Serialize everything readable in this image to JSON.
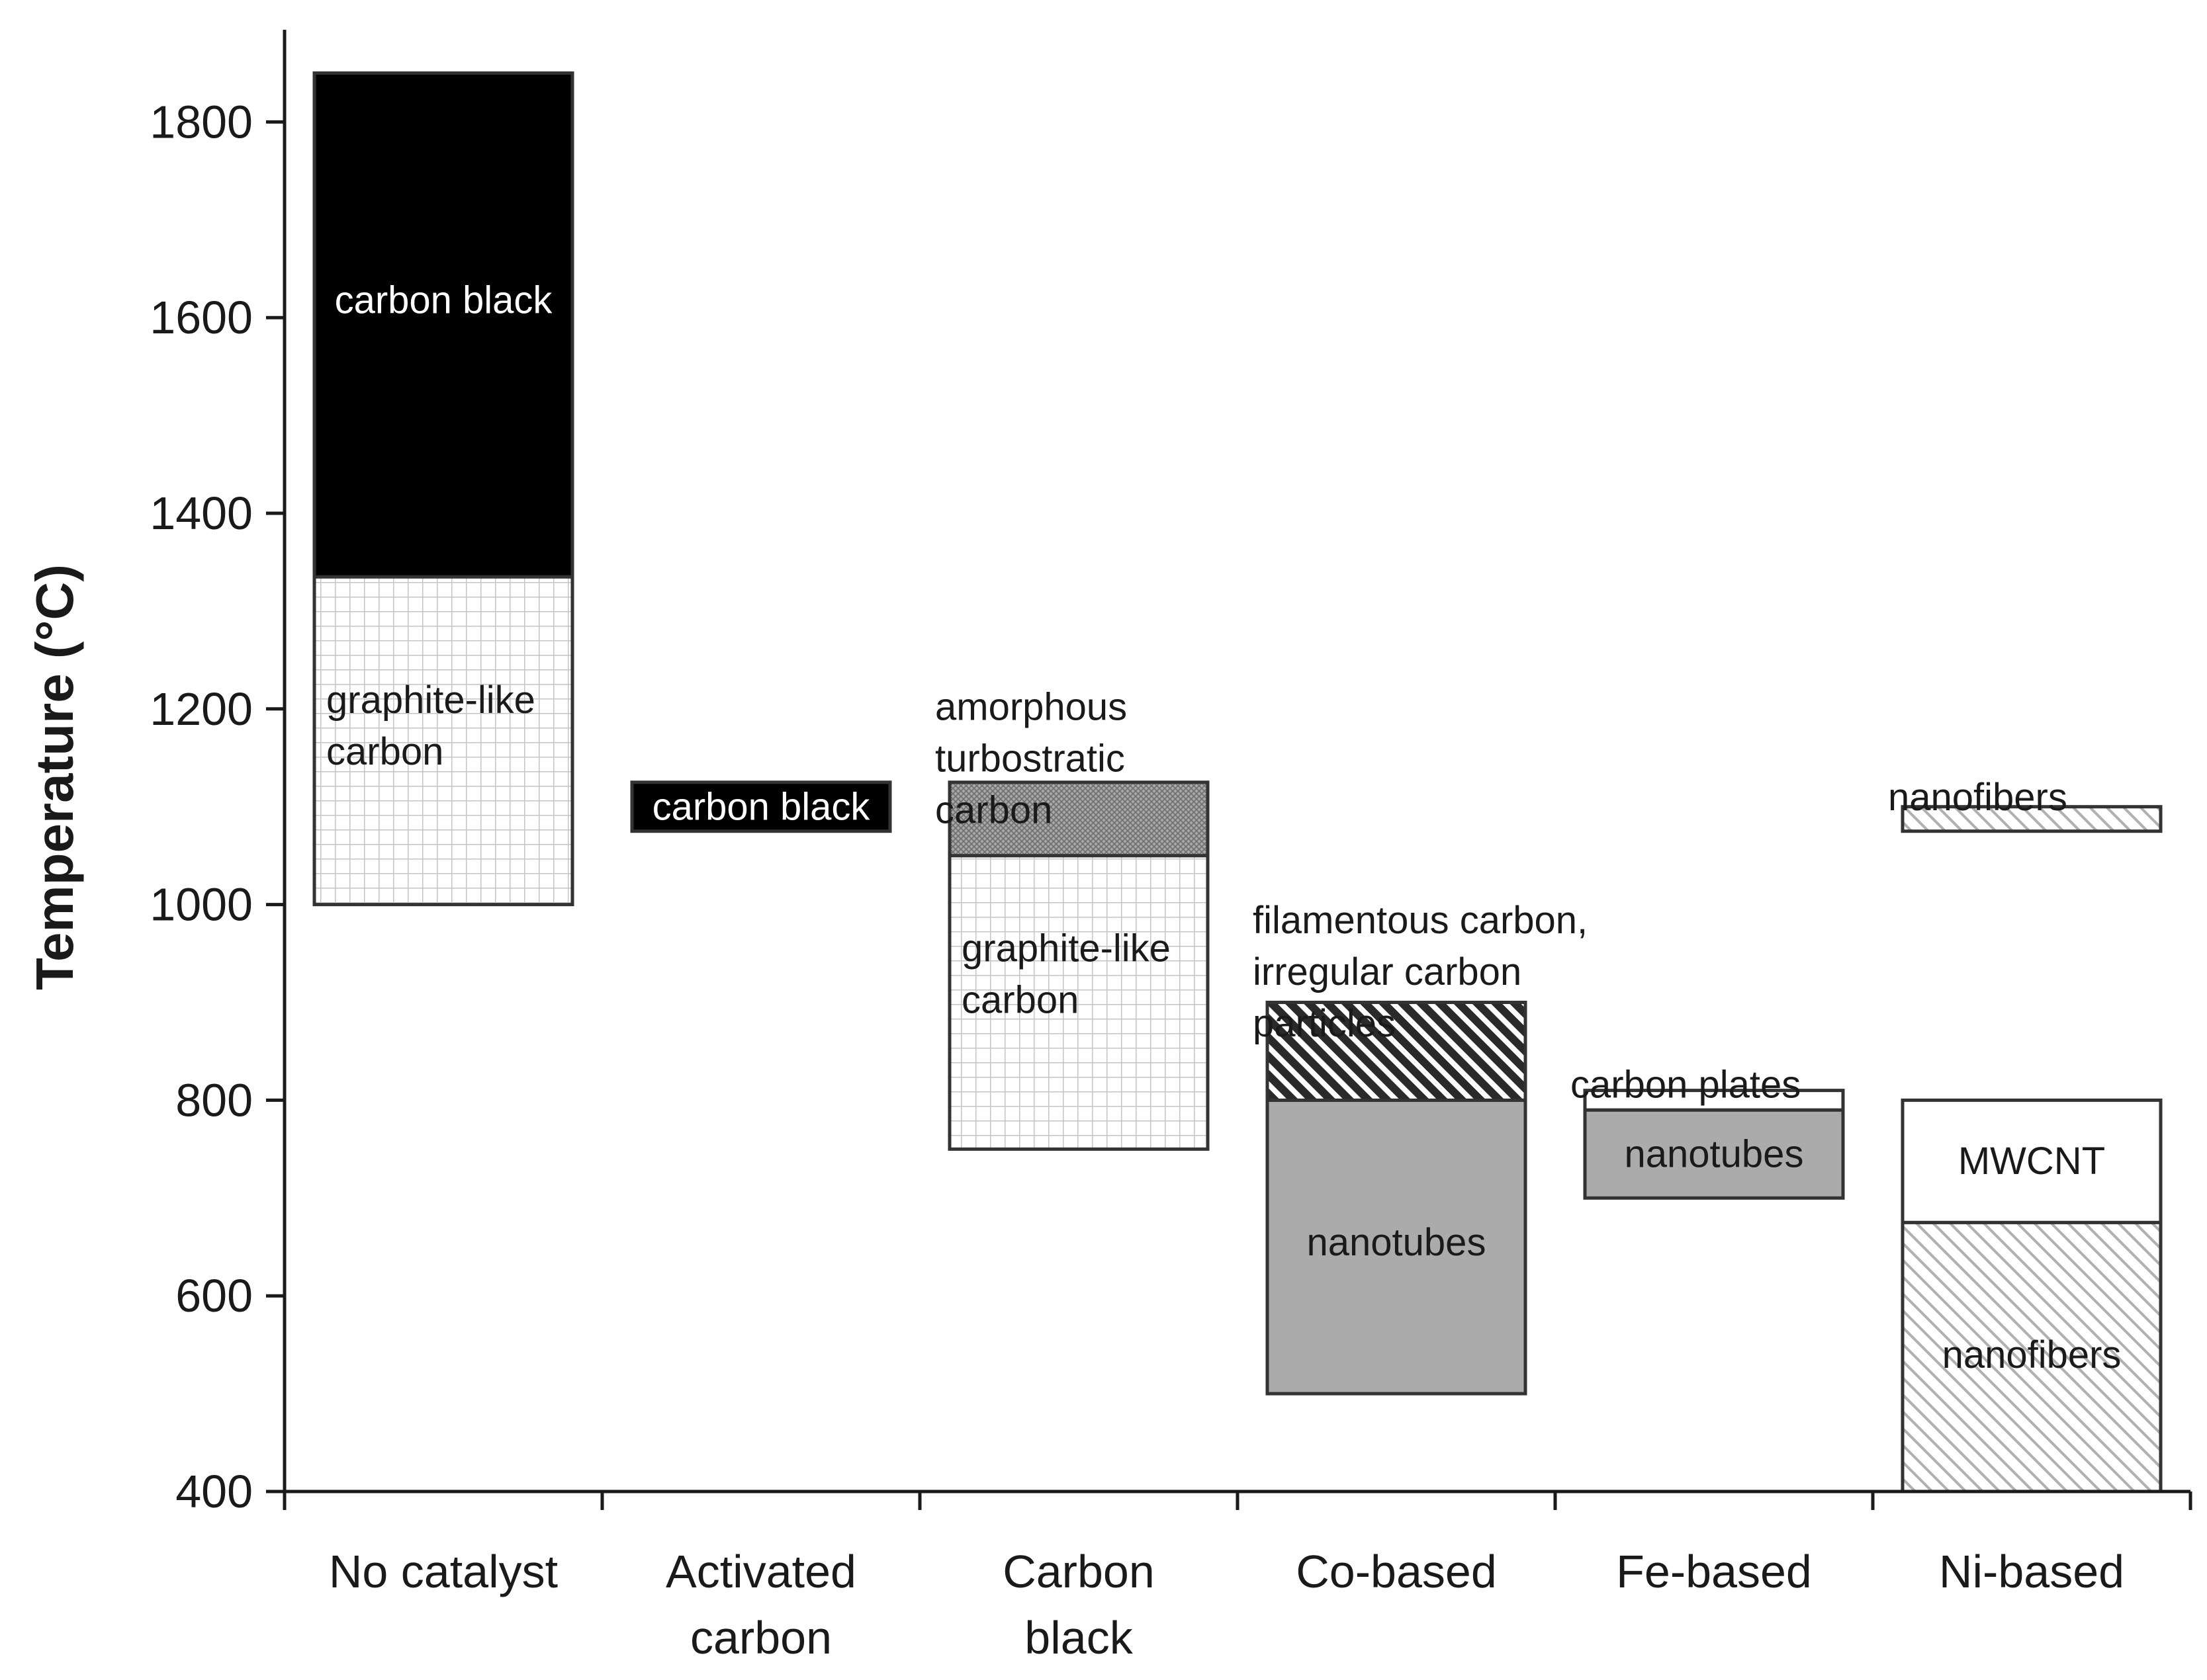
{
  "chart_data": {
    "type": "floating-bar",
    "ylabel": "Temperature (°C)",
    "xlabel": "",
    "ylim": [
      400,
      1900
    ],
    "yticks": [
      400,
      600,
      800,
      1000,
      1200,
      1400,
      1600,
      1800
    ],
    "categories": [
      {
        "label": [
          "No catalyst"
        ]
      },
      {
        "label": [
          "Activated",
          "carbon"
        ]
      },
      {
        "label": [
          "Carbon",
          "black"
        ]
      },
      {
        "label": [
          "Co-based"
        ]
      },
      {
        "label": [
          "Fe-based"
        ]
      },
      {
        "label": [
          "Ni-based"
        ]
      }
    ],
    "segments": [
      {
        "category": 0,
        "low": 1000,
        "high": 1335,
        "product": "graphite-like carbon",
        "label": [
          "graphite-like",
          "carbon"
        ],
        "pattern": "grid",
        "label_at": 1183,
        "label_align": "start"
      },
      {
        "category": 0,
        "low": 1335,
        "high": 1850,
        "product": "carbon black",
        "label": [
          "carbon black"
        ],
        "pattern": "black",
        "label_at": 1618,
        "label_align": "middle"
      },
      {
        "category": 1,
        "low": 1075,
        "high": 1125,
        "product": "carbon black",
        "label": [
          "carbon black"
        ],
        "pattern": "black",
        "label_at": 1100,
        "label_align": "middle"
      },
      {
        "category": 2,
        "low": 750,
        "high": 1050,
        "product": "graphite-like carbon",
        "label": [
          "graphite-like",
          "carbon"
        ],
        "pattern": "grid",
        "label_at": 929,
        "label_align": "start"
      },
      {
        "category": 2,
        "low": 1050,
        "high": 1125,
        "product": "amorphous turbostratic carbon",
        "label": [],
        "pattern": "dense",
        "label_at": 1087,
        "label_align": "middle"
      },
      {
        "category": 3,
        "low": 500,
        "high": 800,
        "product": "nanotubes",
        "label": [
          "nanotubes"
        ],
        "pattern": "grey",
        "label_at": 655,
        "label_align": "middle"
      },
      {
        "category": 3,
        "low": 800,
        "high": 900,
        "product": "filamentous carbon, irregular carbon particles",
        "label": [],
        "pattern": "diag-dark",
        "label_at": 850,
        "label_align": "middle"
      },
      {
        "category": 4,
        "low": 700,
        "high": 790,
        "product": "nanotubes",
        "label": [
          "nanotubes"
        ],
        "pattern": "grey",
        "label_at": 745,
        "label_align": "middle"
      },
      {
        "category": 4,
        "low": 790,
        "high": 810,
        "product": "carbon plates",
        "label": [],
        "pattern": "white",
        "label_at": 800,
        "label_align": "middle"
      },
      {
        "category": 5,
        "low": 400,
        "high": 675,
        "product": "nanofibers",
        "label": [
          "nanofibers"
        ],
        "pattern": "diag-light",
        "label_at": 540,
        "label_align": "middle"
      },
      {
        "category": 5,
        "low": 675,
        "high": 800,
        "product": "MWCNT",
        "label": [
          "MWCNT"
        ],
        "pattern": "white",
        "label_at": 738,
        "label_align": "middle"
      },
      {
        "category": 5,
        "low": 1075,
        "high": 1100,
        "product": "nanofibers",
        "label": [],
        "pattern": "diag-light",
        "label_at": 1087,
        "label_align": "middle"
      }
    ],
    "annotations": [
      {
        "category": 2,
        "lines": [
          "amorphous",
          "turbostratic",
          "carbon"
        ],
        "top_at": 1221
      },
      {
        "category": 3,
        "lines": [
          "filamentous carbon,",
          "irregular carbon",
          "particles"
        ],
        "top_at": 1003
      },
      {
        "category": 4,
        "lines": [
          "carbon plates"
        ],
        "top_at": 835
      },
      {
        "category": 5,
        "lines": [
          "nanofibers"
        ],
        "top_at": 1129
      }
    ],
    "colors": {
      "black": "#000000",
      "grey": "#ababab",
      "grid_line": "#c4c4c4",
      "dense": "#8a8a8a",
      "diag_dark": "#2a2a2a",
      "diag_light": "#b8b8b8",
      "outline": "#333333",
      "axis": "#1a1a1a"
    }
  }
}
